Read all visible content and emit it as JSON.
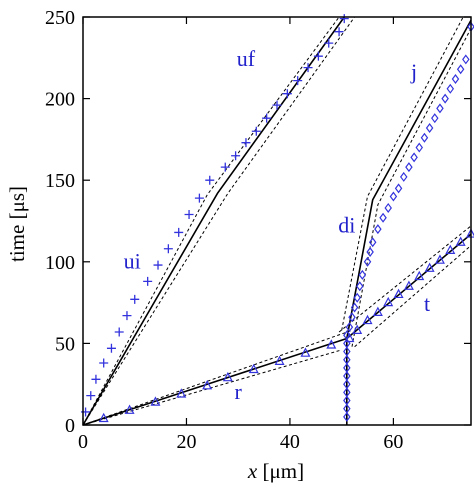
{
  "chart_data": {
    "type": "scatter",
    "xlabel_italic": "x",
    "xlabel_rest": " [μm]",
    "ylabel": "time [μs]",
    "xlim": [
      0,
      75
    ],
    "ylim": [
      0,
      250
    ],
    "xticks": [
      "0",
      "20",
      "40",
      "60"
    ],
    "xtick_values": [
      0,
      20,
      40,
      60
    ],
    "yticks": [
      "0",
      "50",
      "100",
      "150",
      "200",
      "250"
    ],
    "ytick_values": [
      0,
      50,
      100,
      150,
      200,
      250
    ],
    "grid": false,
    "marker_color": "#3333dd",
    "annotations": [
      {
        "text": "uf",
        "x": 31.5,
        "y": 220
      },
      {
        "text": "ui",
        "x": 9.5,
        "y": 96
      },
      {
        "text": "j",
        "x": 64,
        "y": 212
      },
      {
        "text": "di",
        "x": 51,
        "y": 118
      },
      {
        "text": "t",
        "x": 66.5,
        "y": 70
      },
      {
        "text": "r",
        "x": 30,
        "y": 16
      }
    ],
    "fit_lines": [
      {
        "name": "ui-uf",
        "points": [
          [
            0,
            0
          ],
          [
            26,
            142
          ],
          [
            50.5,
            250
          ]
        ]
      },
      {
        "name": "r",
        "points": [
          [
            0,
            0
          ],
          [
            51,
            53
          ]
        ]
      },
      {
        "name": "di-j",
        "points": [
          [
            51,
            53
          ],
          [
            56,
            138
          ],
          [
            75,
            248
          ]
        ]
      },
      {
        "name": "t",
        "points": [
          [
            51,
            53
          ],
          [
            75,
            117
          ]
        ]
      },
      {
        "name": "vertical",
        "points": [
          [
            51,
            0
          ],
          [
            51,
            53
          ]
        ]
      }
    ],
    "band_lines": [
      {
        "points": [
          [
            0,
            0
          ],
          [
            24,
            141
          ],
          [
            49.5,
            250
          ]
        ]
      },
      {
        "points": [
          [
            0,
            0
          ],
          [
            28,
            142
          ],
          [
            52.5,
            250
          ]
        ]
      },
      {
        "points": [
          [
            0,
            0
          ],
          [
            52,
            58
          ]
        ]
      },
      {
        "points": [
          [
            0,
            0
          ],
          [
            50,
            46
          ]
        ]
      },
      {
        "points": [
          [
            50,
            58
          ],
          [
            55,
            140
          ],
          [
            73.5,
            250
          ]
        ]
      },
      {
        "points": [
          [
            52,
            48
          ],
          [
            57,
            135
          ],
          [
            75,
            243
          ]
        ]
      },
      {
        "points": [
          [
            49.5,
            57
          ],
          [
            75,
            122
          ]
        ]
      },
      {
        "points": [
          [
            52.5,
            48
          ],
          [
            75,
            110
          ]
        ]
      }
    ],
    "series": [
      {
        "marker": "plus",
        "x": [
          0.5,
          1.5,
          2.5,
          4,
          5.5,
          7,
          8.5,
          10,
          12.5,
          14.5,
          16.5,
          18.5,
          20.5,
          22.5,
          24.5,
          27.5,
          29.5,
          31.5,
          33.5,
          35.5,
          37.5,
          39.5,
          41.5,
          43.5,
          45.5,
          47.5,
          49.5,
          50.5
        ],
        "y": [
          8,
          18,
          28,
          38,
          47,
          57,
          67,
          77,
          88,
          98,
          108,
          118,
          129,
          139,
          150,
          158,
          165,
          173,
          180,
          188,
          196,
          203,
          211,
          219,
          226,
          234,
          241,
          249
        ]
      },
      {
        "marker": "triangle",
        "x": [
          4,
          9,
          14,
          19,
          24,
          28,
          33,
          38,
          43,
          48,
          51.5,
          53,
          55,
          57,
          59,
          61,
          63,
          65,
          67,
          69,
          71,
          73,
          75
        ],
        "y": [
          4,
          9,
          14,
          19,
          24,
          29,
          34,
          39,
          44,
          49,
          53,
          58,
          64,
          69,
          75,
          80,
          85,
          91,
          96,
          101,
          107,
          112,
          117
        ]
      },
      {
        "marker": "diamond",
        "x": [
          51,
          51,
          51,
          51,
          51,
          51,
          51,
          51,
          51,
          51,
          51,
          51.5,
          52,
          52.5,
          53,
          53.5,
          54,
          55,
          55.5,
          56,
          57,
          58,
          59,
          60,
          61,
          62,
          63,
          64,
          65,
          66,
          67,
          68,
          69,
          70,
          71,
          72,
          73,
          74,
          75
        ],
        "y": [
          5,
          10,
          15,
          20,
          25,
          30,
          35,
          40,
          45,
          50,
          55,
          60,
          66,
          72,
          78,
          85,
          92,
          100,
          106,
          112,
          120,
          127,
          133,
          140,
          145,
          152,
          158,
          164,
          170,
          176,
          182,
          188,
          194,
          200,
          206,
          212,
          218,
          224,
          244
        ]
      }
    ]
  }
}
